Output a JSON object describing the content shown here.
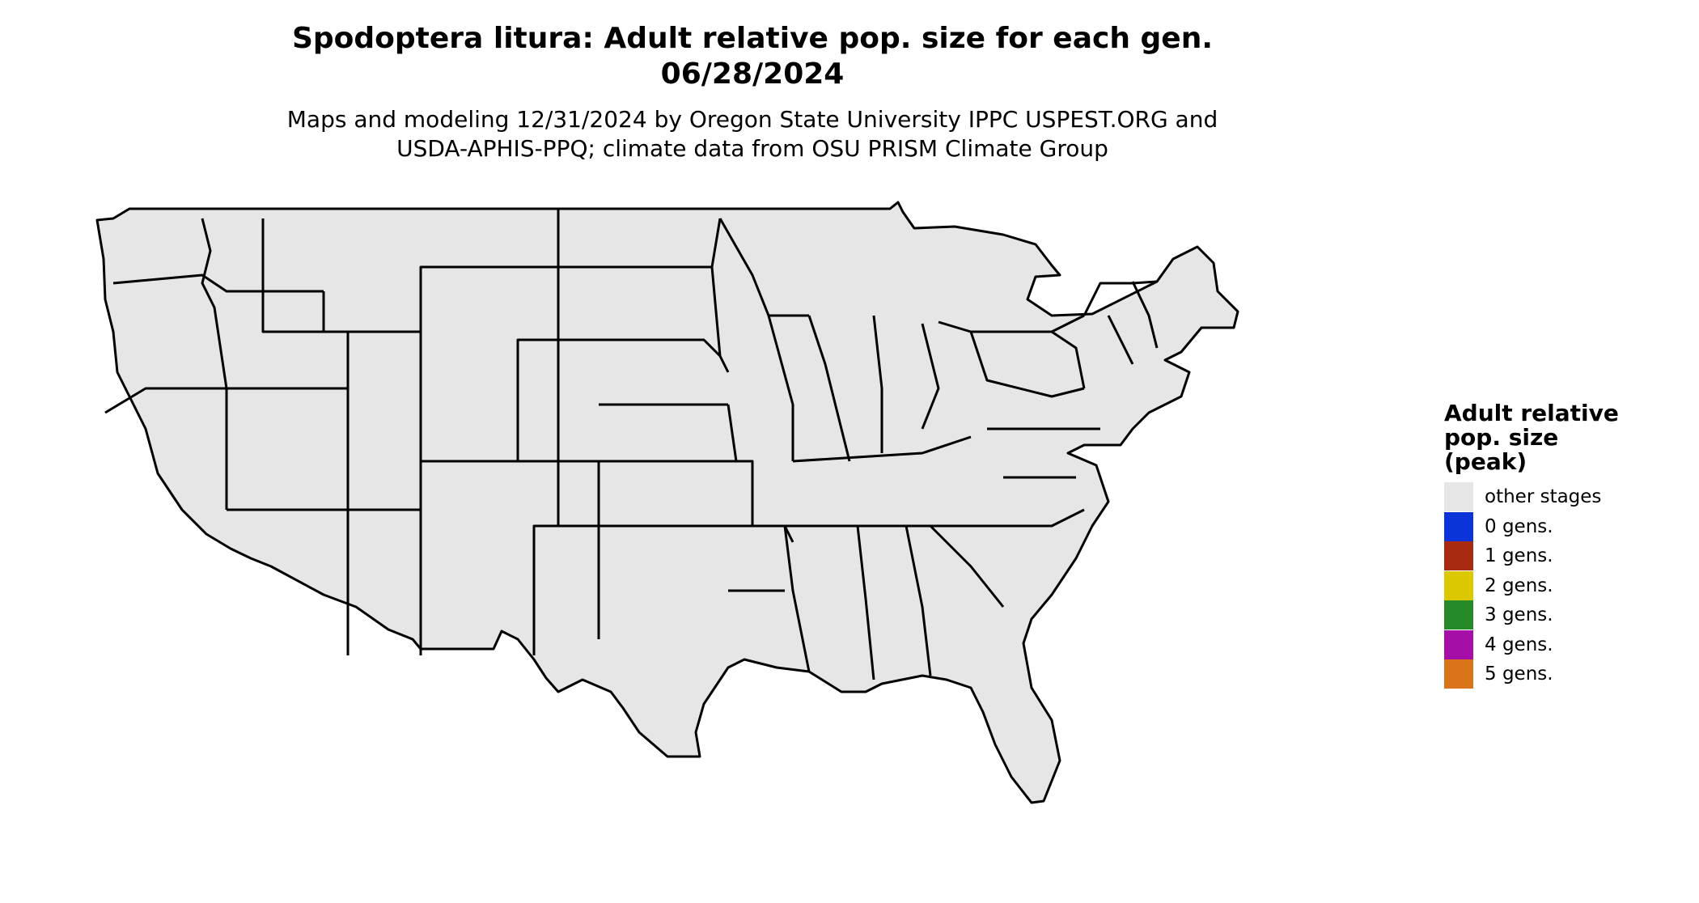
{
  "title": {
    "line1": "Spodoptera litura: Adult relative pop. size for each gen.",
    "line2": "06/28/2024"
  },
  "subtitle": {
    "line1": "Maps and modeling 12/31/2024 by Oregon State University IPPC USPEST.ORG and",
    "line2": "USDA-APHIS-PPQ; climate data from OSU PRISM Climate Group"
  },
  "legend": {
    "title_lines": [
      "Adult relative",
      "pop. size",
      "(peak)"
    ],
    "items": [
      {
        "label": "other stages",
        "color": "#e6e6e6"
      },
      {
        "label": "0 gens.",
        "color": "#0a33d9"
      },
      {
        "label": "1 gens.",
        "color": "#a82a10"
      },
      {
        "label": "2 gens.",
        "color": "#dcc800"
      },
      {
        "label": "3 gens.",
        "color": "#278a28"
      },
      {
        "label": "4 gens.",
        "color": "#a50fa8"
      },
      {
        "label": "5 gens.",
        "color": "#d9741a"
      }
    ]
  },
  "map": {
    "region": "Contiguous United States",
    "land_color": "#e6e6e6",
    "border_color": "#000000",
    "shade_colors": {
      "gen0_dark": "#0b3fd6",
      "gen0_mid": "#1f7ae8",
      "gen0_light": "#22b2f0",
      "gen1_dark": "#b02a0e",
      "gen1_mid": "#d63c10",
      "gen1_light": "#f05a14",
      "gen2": "#f0e000",
      "gen2_light": "#fff23a",
      "gen3": "#2c8f2c",
      "gen3_light": "#86dc5c",
      "gen4": "#b514c0"
    }
  }
}
